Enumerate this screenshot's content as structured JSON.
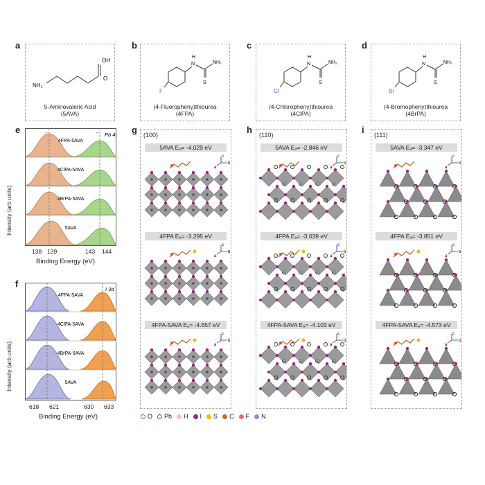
{
  "panels": {
    "a": {
      "label": "a",
      "name": "5-Aminovaleric Acid",
      "abbr": "(5AVA)",
      "atom_oh": "OH",
      "atom_o": "O",
      "atom_nh2": "NH₂"
    },
    "b": {
      "label": "b",
      "name": "(4-Fluoropheny)thiourea",
      "abbr": "(4FPA)",
      "atom_h": "H",
      "atom_n": "N",
      "atom_nh2": "NH₂",
      "atom_s": "S",
      "atom_x": "F"
    },
    "c": {
      "label": "c",
      "name": "(4-Chloropheny)thiourea",
      "abbr": "(4ClPA)",
      "atom_h": "H",
      "atom_n": "N",
      "atom_nh2": "NH₂",
      "atom_s": "S",
      "atom_x": "Cl"
    },
    "d": {
      "label": "d",
      "name": "(4-Bromopheny)thiourea",
      "abbr": "(4BrPA)",
      "atom_h": "H",
      "atom_n": "N",
      "atom_nh2": "NH₂",
      "atom_s": "S",
      "atom_x": "Br"
    }
  },
  "xps_e": {
    "label": "e",
    "element_label": "Pb 4f",
    "ylabel": "Intensity (arb units)",
    "xlabel": "Binding Energy (eV)",
    "ticks": [
      "138",
      "139",
      "143",
      "144"
    ],
    "traces": [
      "4FPA-5AVA",
      "4ClPA-5AVA",
      "4BrPA-5AVA",
      "5AVA"
    ]
  },
  "xps_f": {
    "label": "f",
    "element_label": "I 3d",
    "ylabel": "Intensity (arb units)",
    "xlabel": "Binding Energy (eV)",
    "ticks": [
      "618",
      "621",
      "630",
      "633"
    ],
    "traces": [
      "4FPA-5AVA",
      "4ClPA-5AVA",
      "4BrPA-5AVA",
      "5AVA"
    ]
  },
  "dft": [
    {
      "label": "g",
      "facet": "(100)",
      "rows": [
        {
          "mol": "5AVA",
          "energy": "Eₐ= -4.029 eV"
        },
        {
          "mol": "4FPA",
          "energy": "Eₐ= -3.295 eV"
        },
        {
          "mol": "4FPA-5AVA",
          "energy": "Eₐ= -4.657 eV"
        }
      ]
    },
    {
      "label": "h",
      "facet": "(110)",
      "rows": [
        {
          "mol": "5AVA",
          "energy": "Eₐ= -2.846 eV"
        },
        {
          "mol": "4FPA",
          "energy": "Eₐ= -3.639 eV"
        },
        {
          "mol": "4FPA-5AVA",
          "energy": "Eₐ= -4.103 eV"
        }
      ]
    },
    {
      "label": "i",
      "facet": "(111)",
      "rows": [
        {
          "mol": "5AVA",
          "energy": "Eₐ= -3.347 eV"
        },
        {
          "mol": "4FPA",
          "energy": "Eₐ= -3.851 eV"
        },
        {
          "mol": "4FPA-5AVA",
          "energy": "Eₐ= -4.573 eV"
        }
      ]
    }
  ],
  "axes_glyph": {
    "a": "a",
    "b": "b",
    "c": "c"
  },
  "legend": [
    {
      "sym": "O",
      "color": "#e0502a"
    },
    {
      "sym": "Pb",
      "color": "#555555"
    },
    {
      "sym": "H",
      "color": "#f3c0c0"
    },
    {
      "sym": "I",
      "color": "#a0208a"
    },
    {
      "sym": "S",
      "color": "#e0c020"
    },
    {
      "sym": "C",
      "color": "#b87333"
    },
    {
      "sym": "F",
      "color": "#d8707a"
    },
    {
      "sym": "N",
      "color": "#9090d0"
    }
  ],
  "colors": {
    "pb_fill": "#e8b48e",
    "pb_fill2": "#a7d58a",
    "i_fill": "#b4b6e0",
    "i_fill2": "#f0a050",
    "halogen_f": "#5aa02c",
    "halogen_cl": "#4060c0",
    "halogen_br": "#d06030"
  }
}
